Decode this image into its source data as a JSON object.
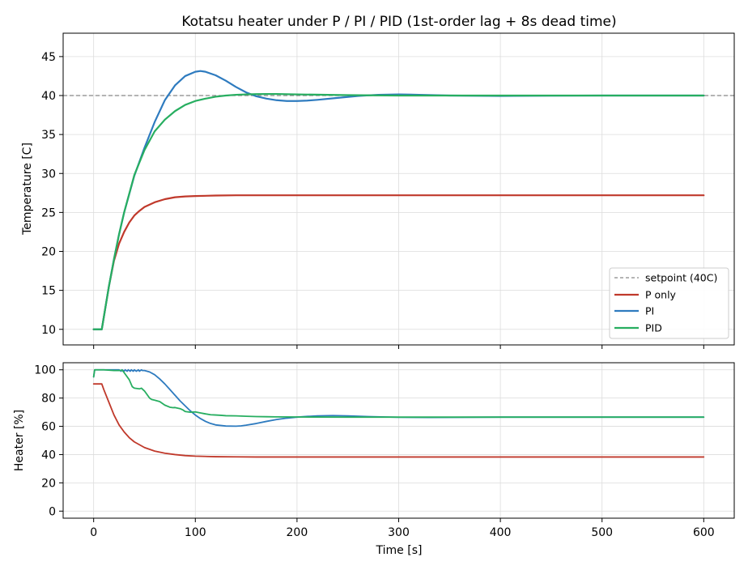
{
  "chart_data": [
    {
      "type": "line",
      "title": "Kotatsu heater under P / PI / PID  (1st-order lag + 8s dead time)",
      "xlabel": "",
      "ylabel": "Temperature  [C]",
      "xlim": [
        -30,
        630
      ],
      "ylim": [
        8,
        48
      ],
      "x_ticks": [
        0,
        100,
        200,
        300,
        400,
        500,
        600
      ],
      "y_ticks": [
        10,
        15,
        20,
        25,
        30,
        35,
        40,
        45
      ],
      "grid": true,
      "legend_position": "lower-right",
      "setpoint": {
        "name": "setpoint (40C)",
        "value": 40,
        "color": "#888888",
        "style": "dashed"
      },
      "series": [
        {
          "name": "P only",
          "color": "#c0392b",
          "x": [
            0,
            8,
            15,
            20,
            25,
            30,
            35,
            40,
            45,
            50,
            60,
            70,
            80,
            90,
            100,
            120,
            140,
            160,
            200,
            300,
            400,
            500,
            600
          ],
          "y": [
            10,
            10,
            15.5,
            18.8,
            21.0,
            22.5,
            23.7,
            24.6,
            25.2,
            25.7,
            26.3,
            26.7,
            26.95,
            27.05,
            27.1,
            27.17,
            27.2,
            27.2,
            27.2,
            27.2,
            27.2,
            27.2,
            27.2
          ]
        },
        {
          "name": "PI",
          "color": "#2e7bbf",
          "x": [
            0,
            8,
            15,
            20,
            25,
            30,
            40,
            50,
            60,
            70,
            80,
            90,
            100,
            105,
            110,
            120,
            130,
            140,
            150,
            160,
            170,
            180,
            190,
            200,
            210,
            220,
            240,
            260,
            280,
            300,
            320,
            350,
            400,
            450,
            500,
            600
          ],
          "y": [
            10,
            10,
            15.5,
            19.0,
            22.2,
            25.0,
            29.7,
            33.3,
            36.6,
            39.4,
            41.3,
            42.5,
            43.05,
            43.15,
            43.05,
            42.6,
            41.9,
            41.1,
            40.4,
            39.9,
            39.6,
            39.4,
            39.3,
            39.3,
            39.35,
            39.45,
            39.7,
            39.95,
            40.1,
            40.15,
            40.1,
            40.0,
            39.95,
            39.98,
            40.0,
            40.0
          ]
        },
        {
          "name": "PID",
          "color": "#27ae60",
          "x": [
            0,
            8,
            15,
            20,
            25,
            30,
            40,
            50,
            60,
            70,
            80,
            90,
            100,
            110,
            120,
            130,
            140,
            150,
            160,
            170,
            180,
            200,
            250,
            300,
            350,
            400,
            500,
            600
          ],
          "y": [
            10,
            10,
            15.5,
            19.0,
            22.2,
            25.0,
            29.8,
            33.0,
            35.4,
            36.9,
            38.0,
            38.8,
            39.3,
            39.6,
            39.85,
            40.0,
            40.1,
            40.15,
            40.18,
            40.2,
            40.2,
            40.15,
            40.05,
            40.0,
            40.0,
            40.0,
            40.0,
            40.0
          ]
        }
      ]
    },
    {
      "type": "line",
      "title": "",
      "xlabel": "Time  [s]",
      "ylabel": "Heater  [%]",
      "xlim": [
        -30,
        630
      ],
      "ylim": [
        -5,
        105
      ],
      "x_ticks": [
        0,
        100,
        200,
        300,
        400,
        500,
        600
      ],
      "x_tick_labels": [
        "0",
        "100",
        "200",
        "300",
        "400",
        "500",
        "600"
      ],
      "y_ticks": [
        0,
        20,
        40,
        60,
        80,
        100
      ],
      "grid": true,
      "series": [
        {
          "name": "P only",
          "color": "#c0392b",
          "x": [
            0,
            8,
            10,
            15,
            20,
            25,
            30,
            35,
            40,
            50,
            60,
            70,
            80,
            90,
            100,
            120,
            140,
            160,
            200,
            300,
            400,
            500,
            600
          ],
          "y": [
            90,
            90,
            86,
            77,
            68,
            61,
            56,
            52,
            49,
            45,
            42.5,
            41,
            40,
            39.3,
            38.9,
            38.5,
            38.4,
            38.3,
            38.3,
            38.3,
            38.3,
            38.3,
            38.3
          ]
        },
        {
          "name": "PI",
          "color": "#2e7bbf",
          "x": [
            0,
            1,
            10,
            25,
            27,
            28,
            30,
            31,
            33,
            34,
            36,
            37,
            39,
            40,
            42,
            44,
            45,
            47,
            48,
            50,
            55,
            60,
            65,
            70,
            75,
            80,
            85,
            90,
            95,
            100,
            105,
            110,
            115,
            120,
            130,
            140,
            145,
            150,
            160,
            170,
            180,
            190,
            200,
            210,
            220,
            235,
            250,
            270,
            300,
            330,
            400,
            500,
            600
          ],
          "y": [
            95,
            100,
            100,
            100,
            99,
            100,
            99,
            100,
            99,
            100,
            99,
            100,
            99,
            100,
            99,
            100,
            99,
            100,
            99.5,
            99.5,
            98.5,
            96.5,
            93.5,
            90,
            86,
            82,
            78,
            74.5,
            71,
            68,
            65.5,
            63.5,
            62,
            61,
            60.2,
            60.1,
            60.3,
            60.8,
            62,
            63.5,
            64.8,
            65.8,
            66.5,
            67,
            67.4,
            67.6,
            67.4,
            66.9,
            66.4,
            66.3,
            66.5,
            66.5,
            66.5
          ]
        },
        {
          "name": "PID",
          "color": "#27ae60",
          "x": [
            0,
            1,
            10,
            20,
            25,
            28,
            30,
            35,
            38,
            40,
            45,
            47,
            50,
            55,
            57,
            60,
            65,
            68,
            70,
            75,
            78,
            80,
            85,
            88,
            90,
            95,
            100,
            105,
            110,
            115,
            120,
            125,
            130,
            140,
            150,
            160,
            170,
            180,
            200,
            250,
            300,
            350,
            400,
            500,
            600
          ],
          "y": [
            95,
            100,
            100,
            99.5,
            99.5,
            99.8,
            98,
            93,
            88,
            87,
            86.5,
            87,
            85,
            80,
            79,
            78.5,
            77.5,
            76,
            75,
            73.5,
            73.2,
            73.3,
            72.5,
            71.5,
            70.5,
            70,
            70.2,
            69.5,
            68.8,
            68.2,
            68,
            67.8,
            67.5,
            67.4,
            67.1,
            66.9,
            66.8,
            66.7,
            66.6,
            66.5,
            66.5,
            66.5,
            66.5,
            66.5,
            66.5
          ]
        }
      ]
    }
  ]
}
